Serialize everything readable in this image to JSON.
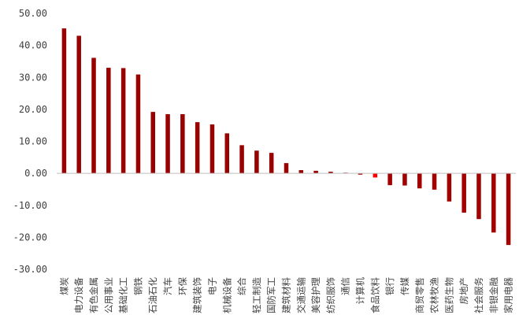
{
  "chart_data": {
    "type": "bar",
    "title": "",
    "xlabel": "",
    "ylabel": "",
    "ylim": [
      -30,
      50
    ],
    "yticks": [
      -30,
      -20,
      -10,
      0,
      10,
      20,
      30,
      40,
      50
    ],
    "ytick_labels": [
      "-30.00",
      "-20.00",
      "-10.00",
      "0.00",
      "10.00",
      "20.00",
      "30.00",
      "40.00",
      "50.00"
    ],
    "grid": false,
    "bar_color": "#990000",
    "negative_bar_color": "#a30000",
    "highlight_color": "#ff0000",
    "axis_color": "#bfbfbf",
    "categories": [
      "煤炭",
      "电力设备",
      "有色金属",
      "公用事业",
      "基础化工",
      "钢铁",
      "石油石化",
      "汽车",
      "环保",
      "建筑装饰",
      "电子",
      "机械设备",
      "综合",
      "轻工制造",
      "国防军工",
      "建筑材料",
      "交通运输",
      "美容护理",
      "纺织服饰",
      "通信",
      "计算机",
      "食品饮料",
      "银行",
      "传媒",
      "商贸零售",
      "农林牧渔",
      "医药生物",
      "房地产",
      "社会服务",
      "非银金融",
      "家用电器"
    ],
    "values": [
      45.3,
      43.0,
      36.1,
      33.0,
      32.9,
      30.9,
      19.2,
      18.5,
      18.5,
      16.0,
      15.3,
      12.5,
      8.8,
      7.1,
      6.4,
      3.2,
      1.0,
      0.8,
      0.5,
      0.2,
      -0.4,
      -1.3,
      -3.7,
      -3.8,
      -4.7,
      -5.1,
      -8.8,
      -12.3,
      -14.3,
      -18.5,
      -22.4
    ],
    "highlight_index": 21
  }
}
